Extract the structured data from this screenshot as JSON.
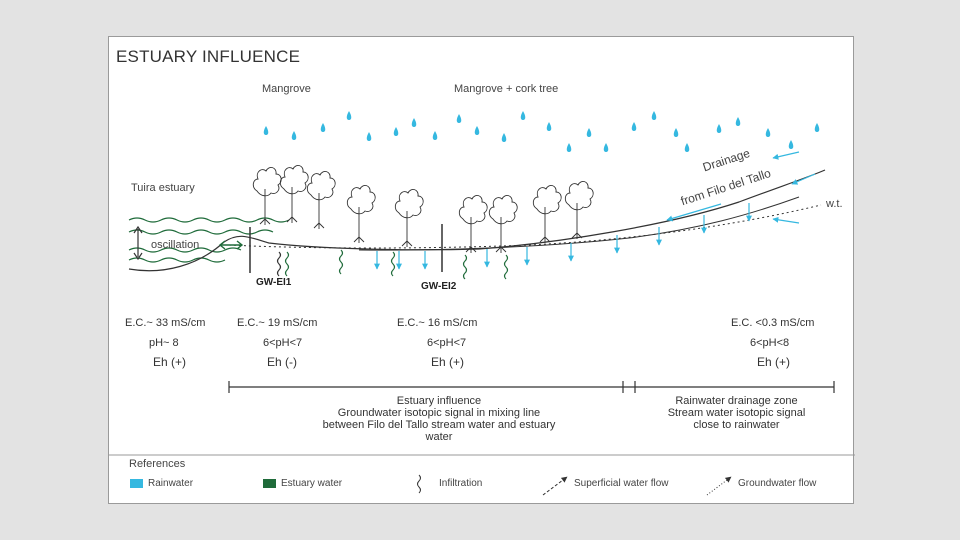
{
  "title": "ESTUARY INFLUENCE",
  "top_labels": {
    "mangrove": "Mangrove",
    "mangrove_cork": "Mangrove + cork tree"
  },
  "side_labels": {
    "estuary": "Tuira estuary",
    "oscillation": "oscillation",
    "water_level": "w.t."
  },
  "drainage_label": [
    "Drainage",
    "from Filo del Tallo"
  ],
  "wells": {
    "gw1": "GW-EI1",
    "gw2": "GW-EI2"
  },
  "measurements": [
    {
      "ec": "E.C.~ 33 mS/cm",
      "ph": "pH~ 8",
      "eh": "Eh (+)"
    },
    {
      "ec": "E.C.~ 19 mS/cm",
      "ph": "6<pH<7",
      "eh": "Eh (-)"
    },
    {
      "ec": "E.C.~ 16 mS/cm",
      "ph": "6<pH<7",
      "eh": "Eh (+)"
    },
    {
      "ec": "E.C. <0.3 mS/cm",
      "ph": "6<pH<8",
      "eh": "Eh (+)"
    }
  ],
  "zones": {
    "estuary": [
      "Estuary influence",
      "Groundwater isotopic signal in mixing line",
      "between Filo del Tallo stream water and estuary water"
    ],
    "rainwater": [
      "Rainwater drainage zone",
      "Stream water isotopic signal",
      "close to rainwater"
    ]
  },
  "references": {
    "heading": "References",
    "items": [
      "Rainwater",
      "Estuary water",
      "Infiltration",
      "Superficial water flow",
      "Groundwater flow"
    ]
  },
  "colors": {
    "rainwater": "#35b8e0",
    "estuary_water": "#1f6b3a",
    "line": "#333333",
    "panel_border": "#9a9a9a"
  }
}
